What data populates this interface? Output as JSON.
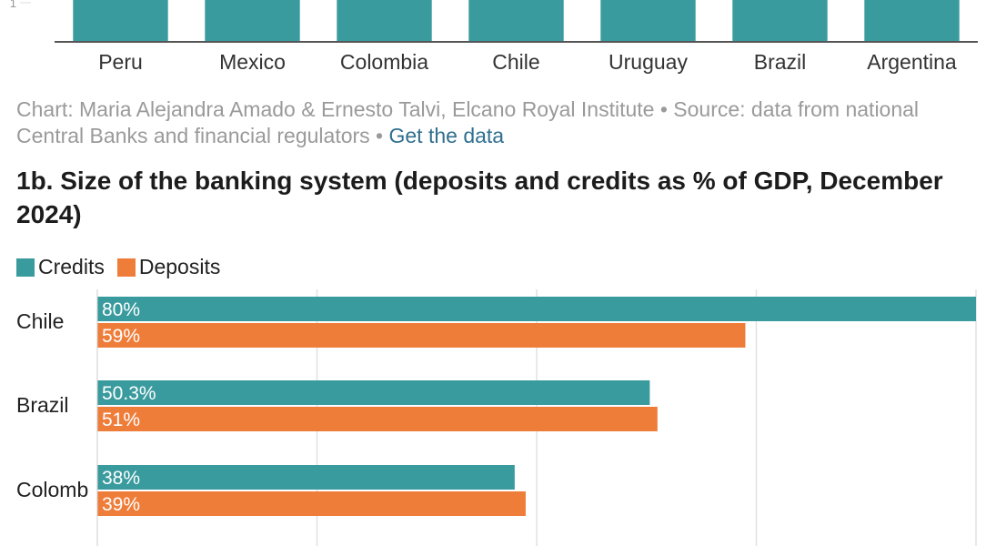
{
  "colors": {
    "credits": "#3a9b9e",
    "deposits": "#ef7d3a",
    "grid": "#e2e2e2",
    "axis": "#555555",
    "caption": "#9a9a9a",
    "link": "#2f6f8f"
  },
  "chart_data": [
    {
      "type": "bar",
      "categories": [
        "Peru",
        "Mexico",
        "Colombia",
        "Chile",
        "Uruguay",
        "Brazil",
        "Argentina"
      ],
      "y_tick_visible": "1",
      "note": ""
    },
    {
      "type": "bar",
      "orientation": "horizontal",
      "title": "1b. Size of the banking system (deposits and credits as % of GDP, December 2024)",
      "categories": [
        "Chile",
        "Brazil",
        "Colomb"
      ],
      "series": [
        {
          "name": "Credits",
          "values": [
            80,
            50.3,
            38
          ],
          "labels": [
            "80%",
            "50.3%",
            "38%"
          ]
        },
        {
          "name": "Deposits",
          "values": [
            59,
            51,
            39
          ],
          "labels": [
            "59%",
            "51%",
            "39%"
          ]
        }
      ],
      "xlim": [
        0,
        80
      ],
      "grid": true,
      "legend": "top-left"
    }
  ],
  "caption": {
    "text": "Chart: Maria Alejandra Amado & Ernesto Talvi, Elcano Royal Institute • Source: data from national Central Banks and financial regulators • ",
    "link": "Get the data"
  }
}
